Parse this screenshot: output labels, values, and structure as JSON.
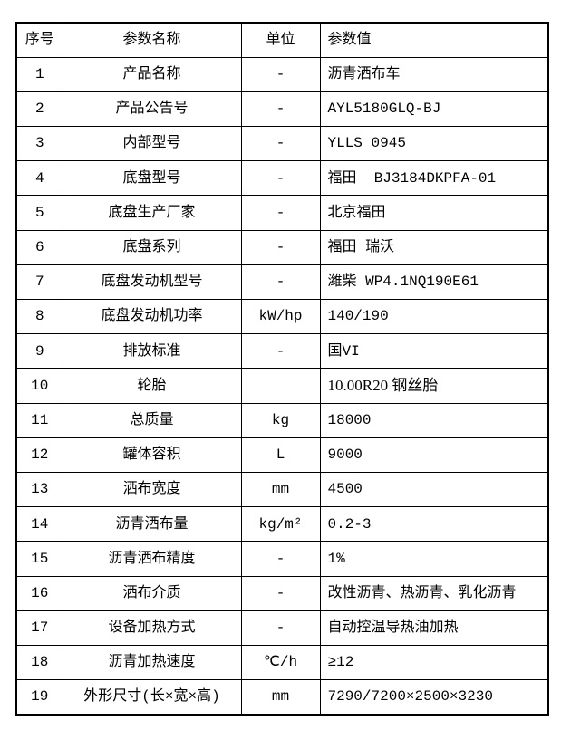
{
  "colors": {
    "border": "#000000",
    "text": "#000000",
    "background": "#ffffff"
  },
  "table": {
    "headers": [
      "序号",
      "参数名称",
      "单位",
      "参数值"
    ],
    "rows": [
      {
        "no": "1",
        "name": "产品名称",
        "unit": "-",
        "value": "沥青洒布车"
      },
      {
        "no": "2",
        "name": "产品公告号",
        "unit": "-",
        "value": "AYL5180GLQ-BJ"
      },
      {
        "no": "3",
        "name": "内部型号",
        "unit": "-",
        "value": "YLLS 0945"
      },
      {
        "no": "4",
        "name": "底盘型号",
        "unit": "-",
        "value": "福田  BJ3184DKPFA-01"
      },
      {
        "no": "5",
        "name": "底盘生产厂家",
        "unit": "-",
        "value": "北京福田"
      },
      {
        "no": "6",
        "name": "底盘系列",
        "unit": "-",
        "value": "福田 瑞沃"
      },
      {
        "no": "7",
        "name": "底盘发动机型号",
        "unit": "-",
        "value": "潍柴 WP4.1NQ190E61"
      },
      {
        "no": "8",
        "name": "底盘发动机功率",
        "unit": "kW/hp",
        "value": "140/190"
      },
      {
        "no": "9",
        "name": "排放标准",
        "unit": "-",
        "value": "国VI"
      },
      {
        "no": "10",
        "name": "轮胎",
        "unit": "",
        "value": "10.00R20 钢丝胎",
        "value_style": "serif"
      },
      {
        "no": "11",
        "name": "总质量",
        "unit": "kg",
        "value": "18000"
      },
      {
        "no": "12",
        "name": "罐体容积",
        "unit": "L",
        "value": "9000"
      },
      {
        "no": "13",
        "name": "洒布宽度",
        "unit": "mm",
        "value": "4500"
      },
      {
        "no": "14",
        "name": "沥青洒布量",
        "unit": "kg/m²",
        "value": "0.2-3"
      },
      {
        "no": "15",
        "name": "沥青洒布精度",
        "unit": "-",
        "value": "1%"
      },
      {
        "no": "16",
        "name": "洒布介质",
        "unit": "-",
        "value": "改性沥青、热沥青、乳化沥青"
      },
      {
        "no": "17",
        "name": "设备加热方式",
        "unit": "-",
        "value": "自动控温导热油加热"
      },
      {
        "no": "18",
        "name": "沥青加热速度",
        "unit": "℃/h",
        "value": "≥12"
      },
      {
        "no": "19",
        "name": "外形尺寸(长×宽×高)",
        "unit": "mm",
        "value": "7290/7200×2500×3230"
      }
    ]
  }
}
